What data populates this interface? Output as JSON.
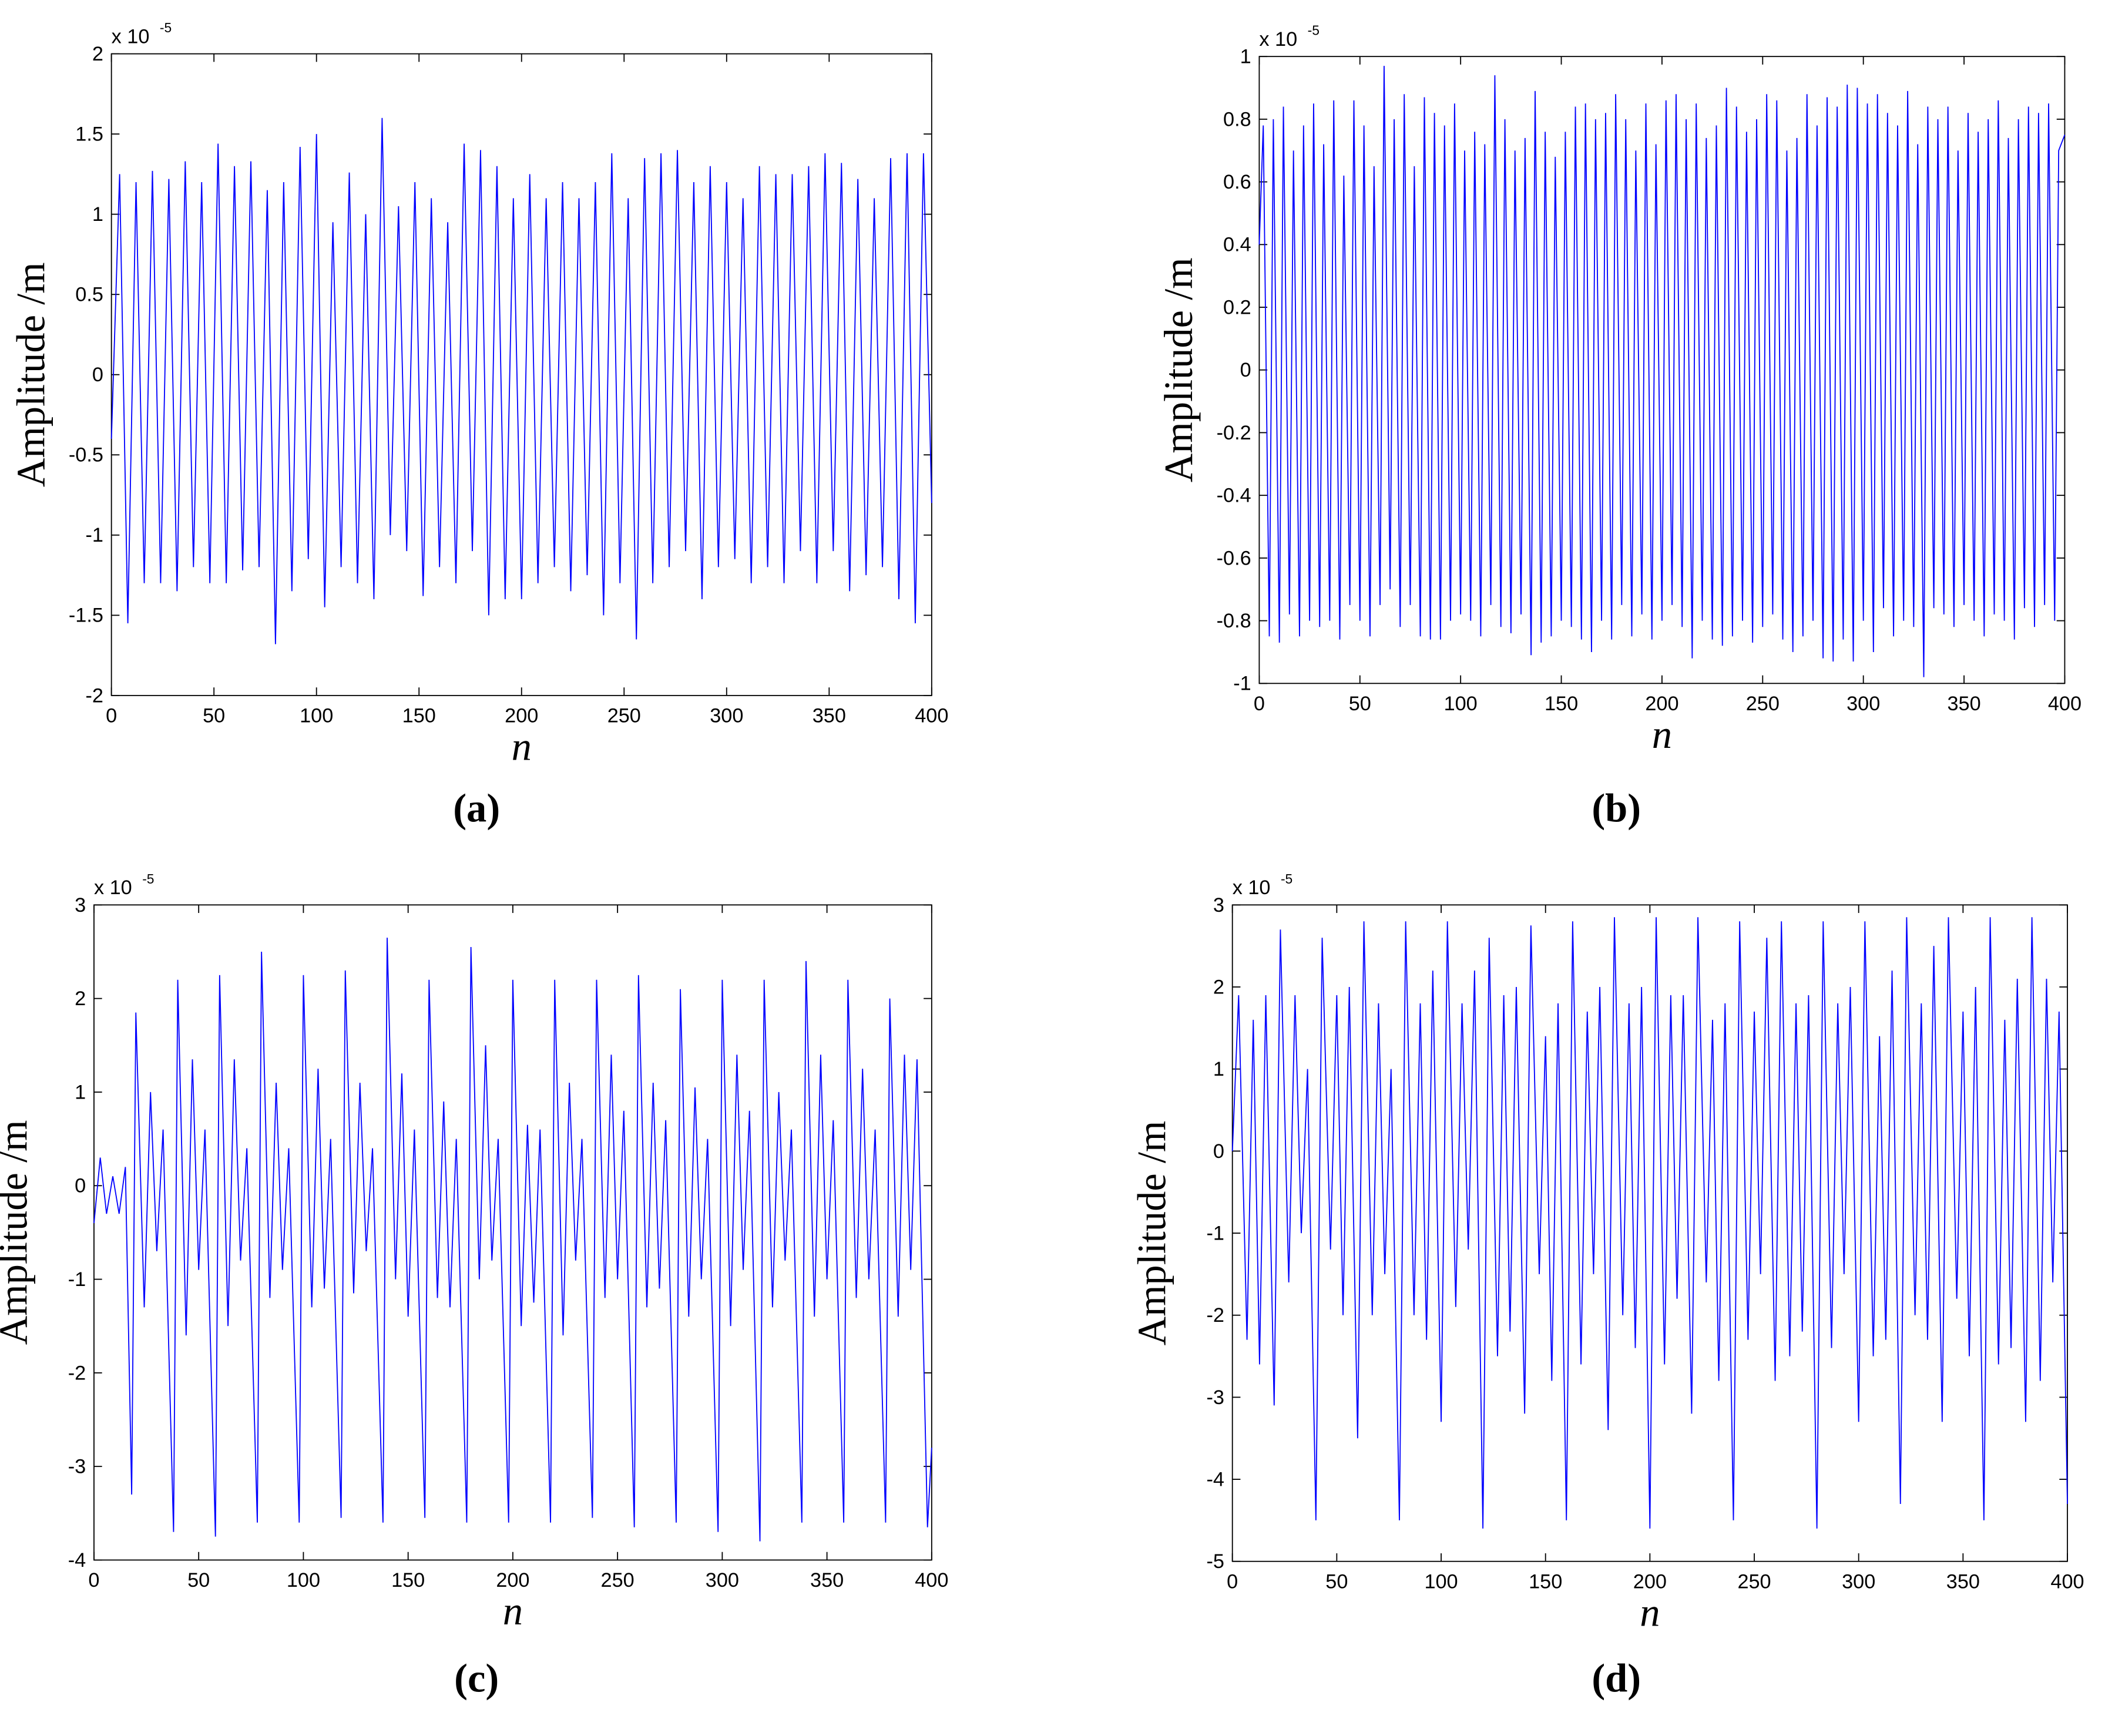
{
  "chart_data": [
    {
      "type": "line",
      "label": "(a)",
      "xlabel": "n",
      "ylabel": "Amplitude /m",
      "y_multiplier": {
        "base": "x 10",
        "exponent": "-5"
      },
      "xlim": [
        0,
        400
      ],
      "xticks": [
        0,
        50,
        100,
        150,
        200,
        250,
        300,
        350,
        400
      ],
      "ylim": [
        -2,
        2
      ],
      "yticks": [
        -2,
        -1.5,
        -1,
        -0.5,
        0,
        0.5,
        1,
        1.5,
        2
      ],
      "x": [
        0,
        4,
        8,
        12,
        16,
        20,
        24,
        28,
        32,
        36,
        40,
        44,
        48,
        52,
        56,
        60,
        64,
        68,
        72,
        76,
        80,
        84,
        88,
        92,
        96,
        100,
        104,
        108,
        112,
        116,
        120,
        124,
        128,
        132,
        136,
        140,
        144,
        148,
        152,
        156,
        160,
        164,
        168,
        172,
        176,
        180,
        184,
        188,
        192,
        196,
        200,
        204,
        208,
        212,
        216,
        220,
        224,
        228,
        232,
        236,
        240,
        244,
        248,
        252,
        256,
        260,
        264,
        268,
        272,
        276,
        280,
        284,
        288,
        292,
        296,
        300,
        304,
        308,
        312,
        316,
        320,
        324,
        328,
        332,
        336,
        340,
        344,
        348,
        352,
        356,
        360,
        364,
        368,
        372,
        376,
        380,
        384,
        388,
        392,
        396,
        400
      ],
      "series": [
        {
          "color": "#0000ff",
          "values": [
            -0.4,
            1.25,
            -1.55,
            1.2,
            -1.3,
            1.27,
            -1.3,
            1.22,
            -1.35,
            1.33,
            -1.2,
            1.2,
            -1.3,
            1.44,
            -1.3,
            1.3,
            -1.22,
            1.33,
            -1.2,
            1.15,
            -1.68,
            1.2,
            -1.35,
            1.42,
            -1.15,
            1.5,
            -1.45,
            0.95,
            -1.2,
            1.26,
            -1.3,
            1.0,
            -1.4,
            1.6,
            -1.0,
            1.05,
            -1.1,
            1.2,
            -1.38,
            1.1,
            -1.2,
            0.95,
            -1.3,
            1.44,
            -1.1,
            1.4,
            -1.5,
            1.3,
            -1.4,
            1.1,
            -1.4,
            1.25,
            -1.3,
            1.1,
            -1.2,
            1.2,
            -1.35,
            1.1,
            -1.25,
            1.2,
            -1.5,
            1.38,
            -1.3,
            1.1,
            -1.65,
            1.35,
            -1.3,
            1.38,
            -1.2,
            1.4,
            -1.1,
            1.2,
            -1.4,
            1.3,
            -1.2,
            1.2,
            -1.15,
            1.1,
            -1.3,
            1.3,
            -1.2,
            1.25,
            -1.3,
            1.25,
            -1.1,
            1.3,
            -1.3,
            1.38,
            -1.1,
            1.32,
            -1.35,
            1.22,
            -1.25,
            1.1,
            -1.2,
            1.35,
            -1.4,
            1.38,
            -1.55,
            1.38,
            -0.8
          ]
        }
      ]
    },
    {
      "type": "line",
      "label": "(b)",
      "xlabel": "n",
      "ylabel": "Amplitude /m",
      "y_multiplier": {
        "base": "x 10",
        "exponent": "-5"
      },
      "xlim": [
        0,
        400
      ],
      "xticks": [
        0,
        50,
        100,
        150,
        200,
        250,
        300,
        350,
        400
      ],
      "ylim": [
        -1,
        1
      ],
      "yticks": [
        -1,
        -0.8,
        -0.6,
        -0.4,
        -0.2,
        0,
        0.2,
        0.4,
        0.6,
        0.8,
        1
      ],
      "x": [
        0,
        2,
        5,
        7,
        10,
        12,
        15,
        17,
        20,
        22,
        25,
        27,
        30,
        32,
        35,
        37,
        40,
        42,
        45,
        47,
        50,
        52,
        55,
        57,
        60,
        62,
        65,
        67,
        70,
        72,
        75,
        77,
        80,
        82,
        85,
        87,
        90,
        92,
        95,
        97,
        100,
        102,
        105,
        107,
        110,
        112,
        115,
        117,
        120,
        122,
        125,
        127,
        130,
        132,
        135,
        137,
        140,
        142,
        145,
        147,
        150,
        152,
        155,
        157,
        160,
        162,
        165,
        167,
        170,
        172,
        175,
        177,
        180,
        182,
        185,
        187,
        190,
        192,
        195,
        197,
        200,
        202,
        205,
        207,
        210,
        212,
        215,
        217,
        220,
        222,
        225,
        227,
        230,
        232,
        235,
        237,
        240,
        242,
        245,
        247,
        250,
        252,
        255,
        257,
        260,
        262,
        265,
        267,
        270,
        272,
        275,
        277,
        280,
        282,
        285,
        287,
        290,
        292,
        295,
        297,
        300,
        302,
        305,
        307,
        310,
        312,
        315,
        317,
        320,
        322,
        325,
        327,
        330,
        332,
        335,
        337,
        340,
        342,
        345,
        347,
        350,
        352,
        355,
        357,
        360,
        362,
        365,
        367,
        370,
        372,
        375,
        377,
        380,
        382,
        385,
        387,
        390,
        392,
        395,
        397,
        400
      ],
      "series": [
        {
          "color": "#0000ff",
          "values": [
            0.4,
            0.78,
            -0.85,
            0.8,
            -0.87,
            0.84,
            -0.78,
            0.7,
            -0.85,
            0.78,
            -0.8,
            0.85,
            -0.82,
            0.72,
            -0.8,
            0.86,
            -0.86,
            0.62,
            -0.75,
            0.86,
            -0.8,
            0.78,
            -0.85,
            0.65,
            -0.75,
            0.97,
            -0.7,
            0.8,
            -0.82,
            0.88,
            -0.75,
            0.65,
            -0.85,
            0.87,
            -0.86,
            0.82,
            -0.86,
            0.78,
            -0.8,
            0.85,
            -0.78,
            0.7,
            -0.8,
            0.76,
            -0.85,
            0.72,
            -0.75,
            0.94,
            -0.82,
            0.8,
            -0.84,
            0.7,
            -0.78,
            0.74,
            -0.91,
            0.89,
            -0.87,
            0.76,
            -0.85,
            0.68,
            -0.8,
            0.76,
            -0.82,
            0.84,
            -0.86,
            0.85,
            -0.9,
            0.8,
            -0.8,
            0.82,
            -0.86,
            0.88,
            -0.75,
            0.8,
            -0.85,
            0.7,
            -0.78,
            0.85,
            -0.86,
            0.72,
            -0.8,
            0.86,
            -0.75,
            0.88,
            -0.82,
            0.8,
            -0.92,
            0.85,
            -0.8,
            0.74,
            -0.86,
            0.78,
            -0.88,
            0.9,
            -0.85,
            0.84,
            -0.8,
            0.76,
            -0.87,
            0.8,
            -0.82,
            0.88,
            -0.78,
            0.86,
            -0.86,
            0.7,
            -0.9,
            0.74,
            -0.85,
            0.88,
            -0.8,
            0.78,
            -0.92,
            0.87,
            -0.93,
            0.84,
            -0.86,
            0.91,
            -0.93,
            0.9,
            -0.8,
            0.85,
            -0.9,
            0.88,
            -0.76,
            0.82,
            -0.85,
            0.78,
            -0.8,
            0.89,
            -0.82,
            0.72,
            -0.98,
            0.84,
            -0.76,
            0.8,
            -0.78,
            0.84,
            -0.82,
            0.7,
            -0.75,
            0.82,
            -0.8,
            0.76,
            -0.85,
            0.8,
            -0.78,
            0.86,
            -0.8,
            0.74,
            -0.86,
            0.8,
            -0.76,
            0.84,
            -0.82,
            0.82,
            -0.75,
            0.85,
            -0.8,
            0.7,
            0.75
          ]
        }
      ]
    },
    {
      "type": "line",
      "label": "(c)",
      "xlabel": "n",
      "ylabel": "Amplitude /m",
      "y_multiplier": {
        "base": "x 10",
        "exponent": "-5"
      },
      "xlim": [
        0,
        400
      ],
      "xticks": [
        0,
        50,
        100,
        150,
        200,
        250,
        300,
        350,
        400
      ],
      "ylim": [
        -4,
        3
      ],
      "yticks": [
        -4,
        -3,
        -2,
        -1,
        0,
        1,
        2,
        3
      ],
      "x": [
        0,
        3,
        6,
        9,
        12,
        15,
        18,
        20,
        24,
        27,
        30,
        33,
        38,
        40,
        44,
        47,
        50,
        53,
        58,
        60,
        64,
        67,
        70,
        73,
        78,
        80,
        84,
        87,
        90,
        93,
        98,
        100,
        104,
        107,
        110,
        113,
        118,
        120,
        124,
        127,
        130,
        133,
        138,
        140,
        144,
        147,
        150,
        153,
        158,
        160,
        164,
        167,
        170,
        173,
        178,
        180,
        184,
        187,
        190,
        193,
        198,
        200,
        204,
        207,
        210,
        213,
        218,
        220,
        224,
        227,
        230,
        233,
        238,
        240,
        244,
        247,
        250,
        253,
        258,
        260,
        264,
        267,
        270,
        273,
        278,
        280,
        284,
        287,
        290,
        293,
        298,
        300,
        304,
        307,
        310,
        313,
        318,
        320,
        324,
        327,
        330,
        333,
        338,
        340,
        344,
        347,
        350,
        353,
        358,
        360,
        364,
        367,
        370,
        373,
        378,
        380,
        384,
        387,
        390,
        393,
        398,
        400
      ],
      "series": [
        {
          "color": "#0000ff",
          "values": [
            -0.4,
            0.3,
            -0.3,
            0.1,
            -0.3,
            0.2,
            -3.3,
            1.85,
            -1.3,
            1.0,
            -0.7,
            0.6,
            -3.7,
            2.2,
            -1.6,
            1.35,
            -0.9,
            0.6,
            -3.75,
            2.25,
            -1.5,
            1.35,
            -0.8,
            0.4,
            -3.6,
            2.5,
            -1.2,
            1.1,
            -0.9,
            0.4,
            -3.6,
            2.25,
            -1.3,
            1.25,
            -1.1,
            0.5,
            -3.55,
            2.3,
            -1.15,
            1.1,
            -0.7,
            0.4,
            -3.6,
            2.65,
            -1.0,
            1.2,
            -1.4,
            0.6,
            -3.55,
            2.2,
            -1.2,
            0.9,
            -1.3,
            0.5,
            -3.6,
            2.55,
            -1.0,
            1.5,
            -0.8,
            0.5,
            -3.6,
            2.2,
            -1.5,
            0.65,
            -1.25,
            0.6,
            -3.6,
            2.2,
            -1.6,
            1.1,
            -0.8,
            0.5,
            -3.55,
            2.2,
            -1.2,
            1.4,
            -1.0,
            0.8,
            -3.65,
            2.25,
            -1.3,
            1.1,
            -1.1,
            0.7,
            -3.6,
            2.1,
            -1.4,
            1.05,
            -1.0,
            0.5,
            -3.7,
            2.2,
            -1.5,
            1.4,
            -0.9,
            0.8,
            -3.8,
            2.2,
            -1.3,
            1.0,
            -0.8,
            0.6,
            -3.6,
            2.4,
            -1.4,
            1.4,
            -1.0,
            0.7,
            -3.6,
            2.2,
            -1.2,
            1.25,
            -1.0,
            0.6,
            -3.6,
            2.0,
            -1.4,
            1.4,
            -0.9,
            1.35,
            -3.65,
            -2.8
          ]
        }
      ]
    },
    {
      "type": "line",
      "label": "(d)",
      "xlabel": "n",
      "ylabel": "Amplitude /m",
      "y_multiplier": {
        "base": "x 10",
        "exponent": "-5"
      },
      "xlim": [
        0,
        400
      ],
      "xticks": [
        0,
        50,
        100,
        150,
        200,
        250,
        300,
        350,
        400
      ],
      "ylim": [
        -5,
        3
      ],
      "yticks": [
        -5,
        -4,
        -3,
        -2,
        -1,
        0,
        1,
        2,
        3
      ],
      "x": [
        0,
        3,
        7,
        10,
        13,
        16,
        20,
        23,
        27,
        30,
        33,
        36,
        40,
        43,
        47,
        50,
        53,
        56,
        60,
        63,
        67,
        70,
        73,
        76,
        80,
        83,
        87,
        90,
        93,
        96,
        100,
        103,
        107,
        110,
        113,
        116,
        120,
        123,
        127,
        130,
        133,
        136,
        140,
        143,
        147,
        150,
        153,
        156,
        160,
        163,
        167,
        170,
        173,
        176,
        180,
        183,
        187,
        190,
        193,
        196,
        200,
        203,
        207,
        210,
        213,
        216,
        220,
        223,
        227,
        230,
        233,
        236,
        240,
        243,
        247,
        250,
        253,
        256,
        260,
        263,
        267,
        270,
        273,
        276,
        280,
        283,
        287,
        290,
        293,
        296,
        300,
        303,
        307,
        310,
        313,
        316,
        320,
        323,
        327,
        330,
        333,
        336,
        340,
        343,
        347,
        350,
        353,
        356,
        360,
        363,
        367,
        370,
        373,
        376,
        380,
        383,
        387,
        390,
        393,
        396,
        400
      ],
      "series": [
        {
          "color": "#0000ff",
          "values": [
            0,
            1.9,
            -2.3,
            1.6,
            -2.6,
            1.9,
            -3.1,
            2.7,
            -1.6,
            1.9,
            -1.0,
            1.0,
            -4.5,
            2.6,
            -1.2,
            1.9,
            -2.0,
            2.0,
            -3.5,
            2.8,
            -2.0,
            1.8,
            -1.5,
            1.0,
            -4.5,
            2.8,
            -2.0,
            1.8,
            -2.3,
            2.2,
            -3.3,
            2.8,
            -1.9,
            1.8,
            -1.2,
            2.2,
            -4.6,
            2.6,
            -2.5,
            1.9,
            -2.2,
            2.0,
            -3.2,
            2.75,
            -1.5,
            1.4,
            -2.8,
            1.8,
            -4.5,
            2.8,
            -2.6,
            1.7,
            -1.5,
            2.0,
            -3.4,
            2.85,
            -2.0,
            1.8,
            -2.4,
            2.0,
            -4.6,
            2.85,
            -2.6,
            1.9,
            -1.8,
            1.9,
            -3.2,
            2.85,
            -1.6,
            1.6,
            -2.8,
            1.8,
            -4.5,
            2.8,
            -2.3,
            1.7,
            -1.5,
            2.6,
            -2.8,
            2.8,
            -2.5,
            1.8,
            -2.2,
            1.9,
            -4.6,
            2.8,
            -2.4,
            1.8,
            -1.5,
            2.0,
            -3.3,
            2.8,
            -2.5,
            1.4,
            -2.3,
            2.2,
            -4.3,
            2.85,
            -2.0,
            1.8,
            -2.3,
            2.5,
            -3.3,
            2.85,
            -1.8,
            1.7,
            -2.5,
            2.0,
            -4.5,
            2.85,
            -2.6,
            1.6,
            -2.4,
            2.1,
            -3.3,
            2.85,
            -2.8,
            2.1,
            -1.6,
            1.7,
            -4.3
          ]
        }
      ]
    }
  ]
}
